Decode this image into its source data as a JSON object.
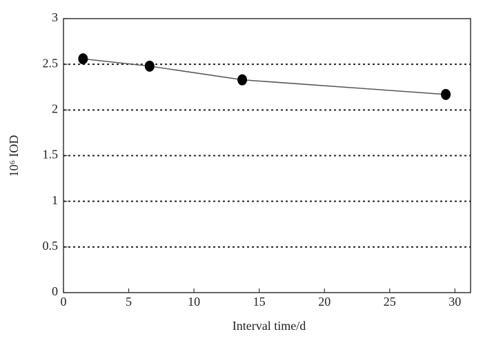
{
  "chart_data": {
    "type": "line",
    "x_label": "Interval time/d",
    "y_label": "10⁶ IOD",
    "x": [
      1.5,
      6.6,
      13.7,
      29.3
    ],
    "series": [
      {
        "name": null,
        "color": "#555555",
        "marker_color": "#000000",
        "values": [
          2.56,
          2.48,
          2.33,
          2.17
        ]
      }
    ],
    "xlim": [
      0,
      31.2
    ],
    "xticks": [
      0,
      5,
      10,
      15,
      20,
      25,
      30
    ],
    "ylim": [
      0,
      3
    ],
    "yticks": [
      0,
      0.5,
      1,
      1.5,
      2,
      2.5,
      3
    ],
    "grid": true
  }
}
